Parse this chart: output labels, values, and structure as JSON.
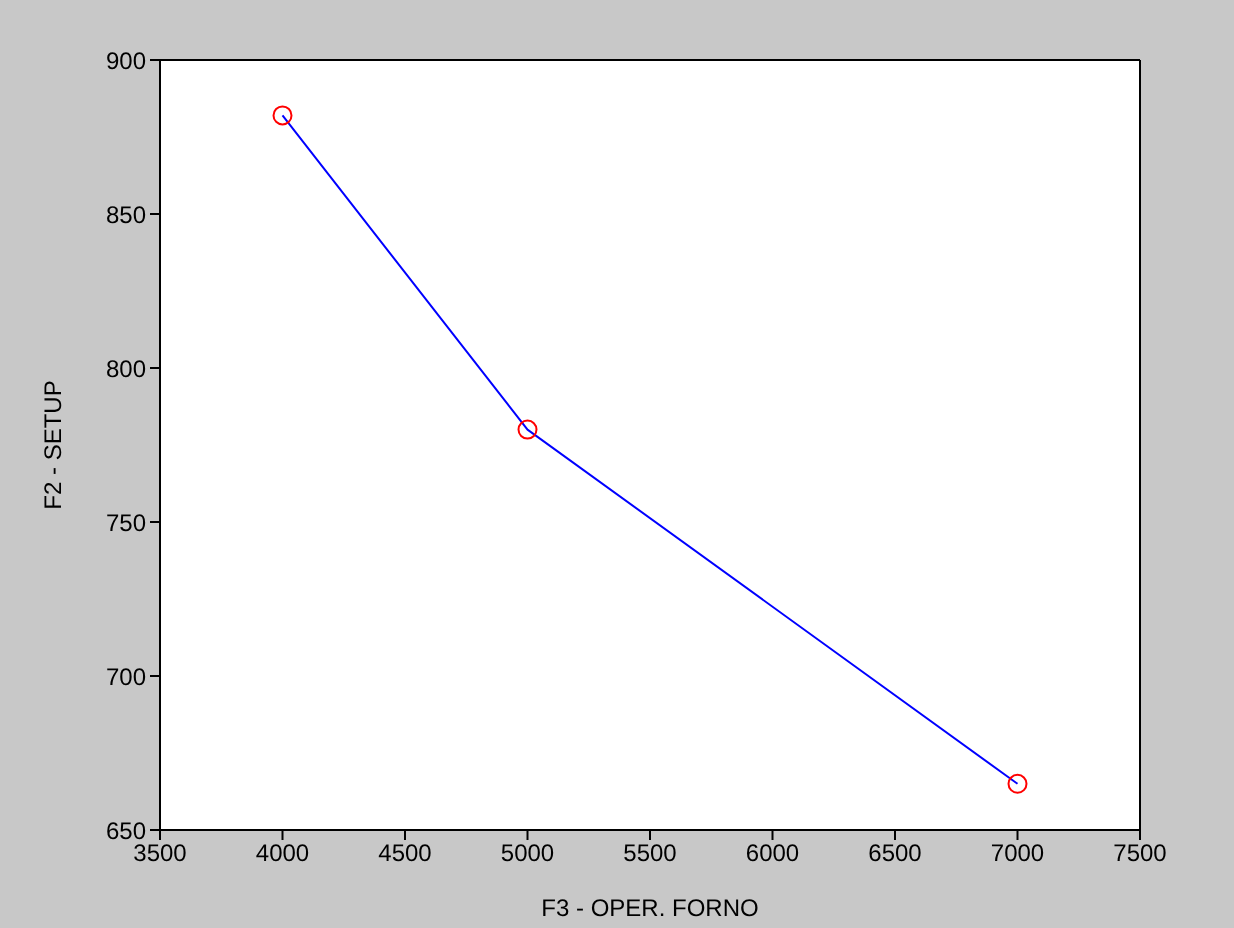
{
  "chart_data": {
    "type": "line",
    "xlabel": "F3 - OPER. FORNO",
    "ylabel": "F2 - SETUP",
    "x": [
      4000,
      5000,
      7000
    ],
    "series": [
      {
        "color": "#0000ff",
        "values": [
          882,
          780,
          665
        ],
        "marker": "none"
      },
      {
        "type": "scatter",
        "color": "#ff0000",
        "values": [
          882,
          780,
          665
        ],
        "marker": "circle"
      }
    ],
    "xlim": [
      3500,
      7500
    ],
    "xticks": [
      3500,
      4000,
      4500,
      5000,
      5500,
      6000,
      6500,
      7000,
      7500
    ],
    "ylim": [
      650,
      900
    ],
    "yticks": [
      650,
      700,
      750,
      800,
      850,
      900
    ]
  }
}
